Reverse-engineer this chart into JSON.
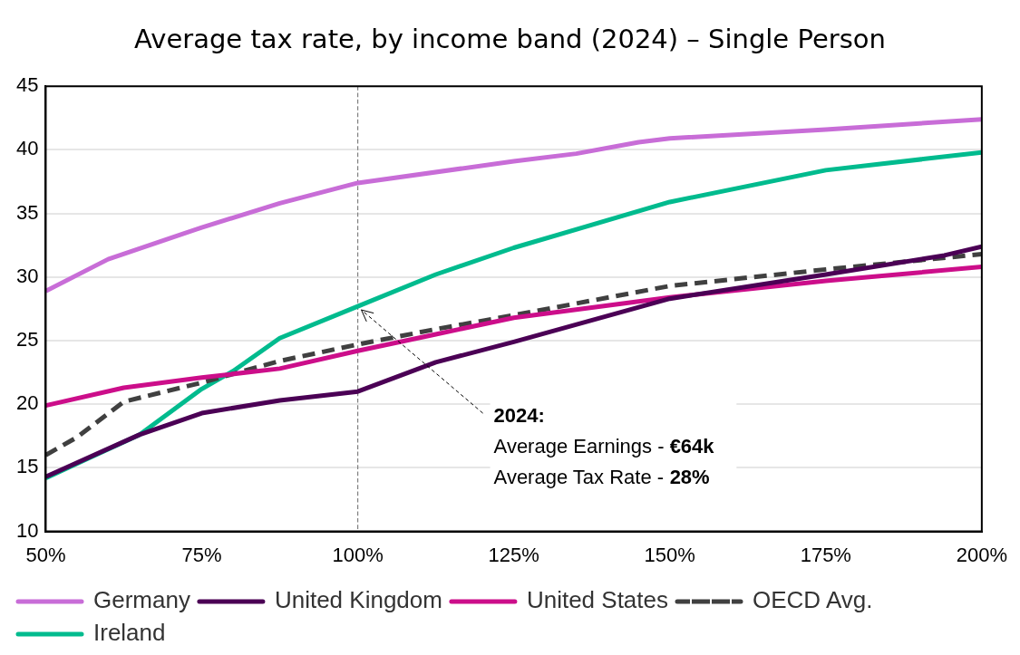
{
  "chart_data": {
    "type": "line",
    "title": "Average tax rate, by income band (2024) – Single Person",
    "xlim": [
      50,
      200
    ],
    "xticks": [
      {
        "value": 50,
        "label": "50%"
      },
      {
        "value": 75,
        "label": "75%"
      },
      {
        "value": 100,
        "label": "100%"
      },
      {
        "value": 125,
        "label": "125%"
      },
      {
        "value": 150,
        "label": "150%"
      },
      {
        "value": 175,
        "label": "175%"
      },
      {
        "value": 200,
        "label": "200%"
      }
    ],
    "ylim": [
      10,
      45
    ],
    "yticks": [
      10,
      15,
      20,
      25,
      30,
      35,
      40,
      45
    ],
    "grid": "y",
    "legend": "bottom",
    "marker": "none",
    "series": [
      {
        "name": "Germany",
        "color": "#c86dd7",
        "x": [
          50,
          60,
          75,
          87.5,
          100,
          125,
          135,
          145,
          150,
          175,
          200
        ],
        "values": [
          28.9,
          31.4,
          33.9,
          35.8,
          37.4,
          39.1,
          39.7,
          40.6,
          40.9,
          41.6,
          42.4
        ]
      },
      {
        "name": "United Kingdom",
        "color": "#4b0055",
        "x": [
          50,
          65,
          75,
          87.5,
          100,
          112.5,
          125,
          150,
          175,
          194,
          200
        ],
        "values": [
          14.3,
          17.6,
          19.3,
          20.3,
          21.0,
          23.3,
          24.9,
          28.3,
          30.2,
          31.7,
          32.4
        ]
      },
      {
        "name": "United States",
        "color": "#cc0e8a",
        "x": [
          50,
          62.5,
          75,
          87.5,
          100,
          112.5,
          125,
          150,
          175,
          200
        ],
        "values": [
          19.9,
          21.3,
          22.1,
          22.8,
          24.2,
          25.5,
          26.8,
          28.4,
          29.7,
          30.8
        ]
      },
      {
        "name": "OECD Avg.",
        "color": "#404040",
        "line_style": "dashed",
        "x": [
          50,
          55,
          62.5,
          75,
          87.5,
          100,
          112.5,
          125,
          150,
          175,
          200
        ],
        "values": [
          16.0,
          17.4,
          20.2,
          21.7,
          23.4,
          24.7,
          25.9,
          27.0,
          29.3,
          30.6,
          31.8
        ]
      },
      {
        "name": "Ireland",
        "color": "#00bb8e",
        "x": [
          50,
          65,
          75,
          80,
          87.5,
          100,
          112.5,
          125,
          150,
          175,
          200
        ],
        "values": [
          14.2,
          17.6,
          21.2,
          22.6,
          25.2,
          27.7,
          30.2,
          32.3,
          35.9,
          38.4,
          39.8
        ]
      }
    ],
    "ref_lines": [
      {
        "axis": "x",
        "value": 100,
        "color": "#808080",
        "line_style": "dashed"
      }
    ],
    "annotations": [
      {
        "text": "2024:\nAverage Earnings - €64k\nAverage Tax Rate - 28%",
        "x": 100,
        "y": 27.7
      }
    ]
  }
}
